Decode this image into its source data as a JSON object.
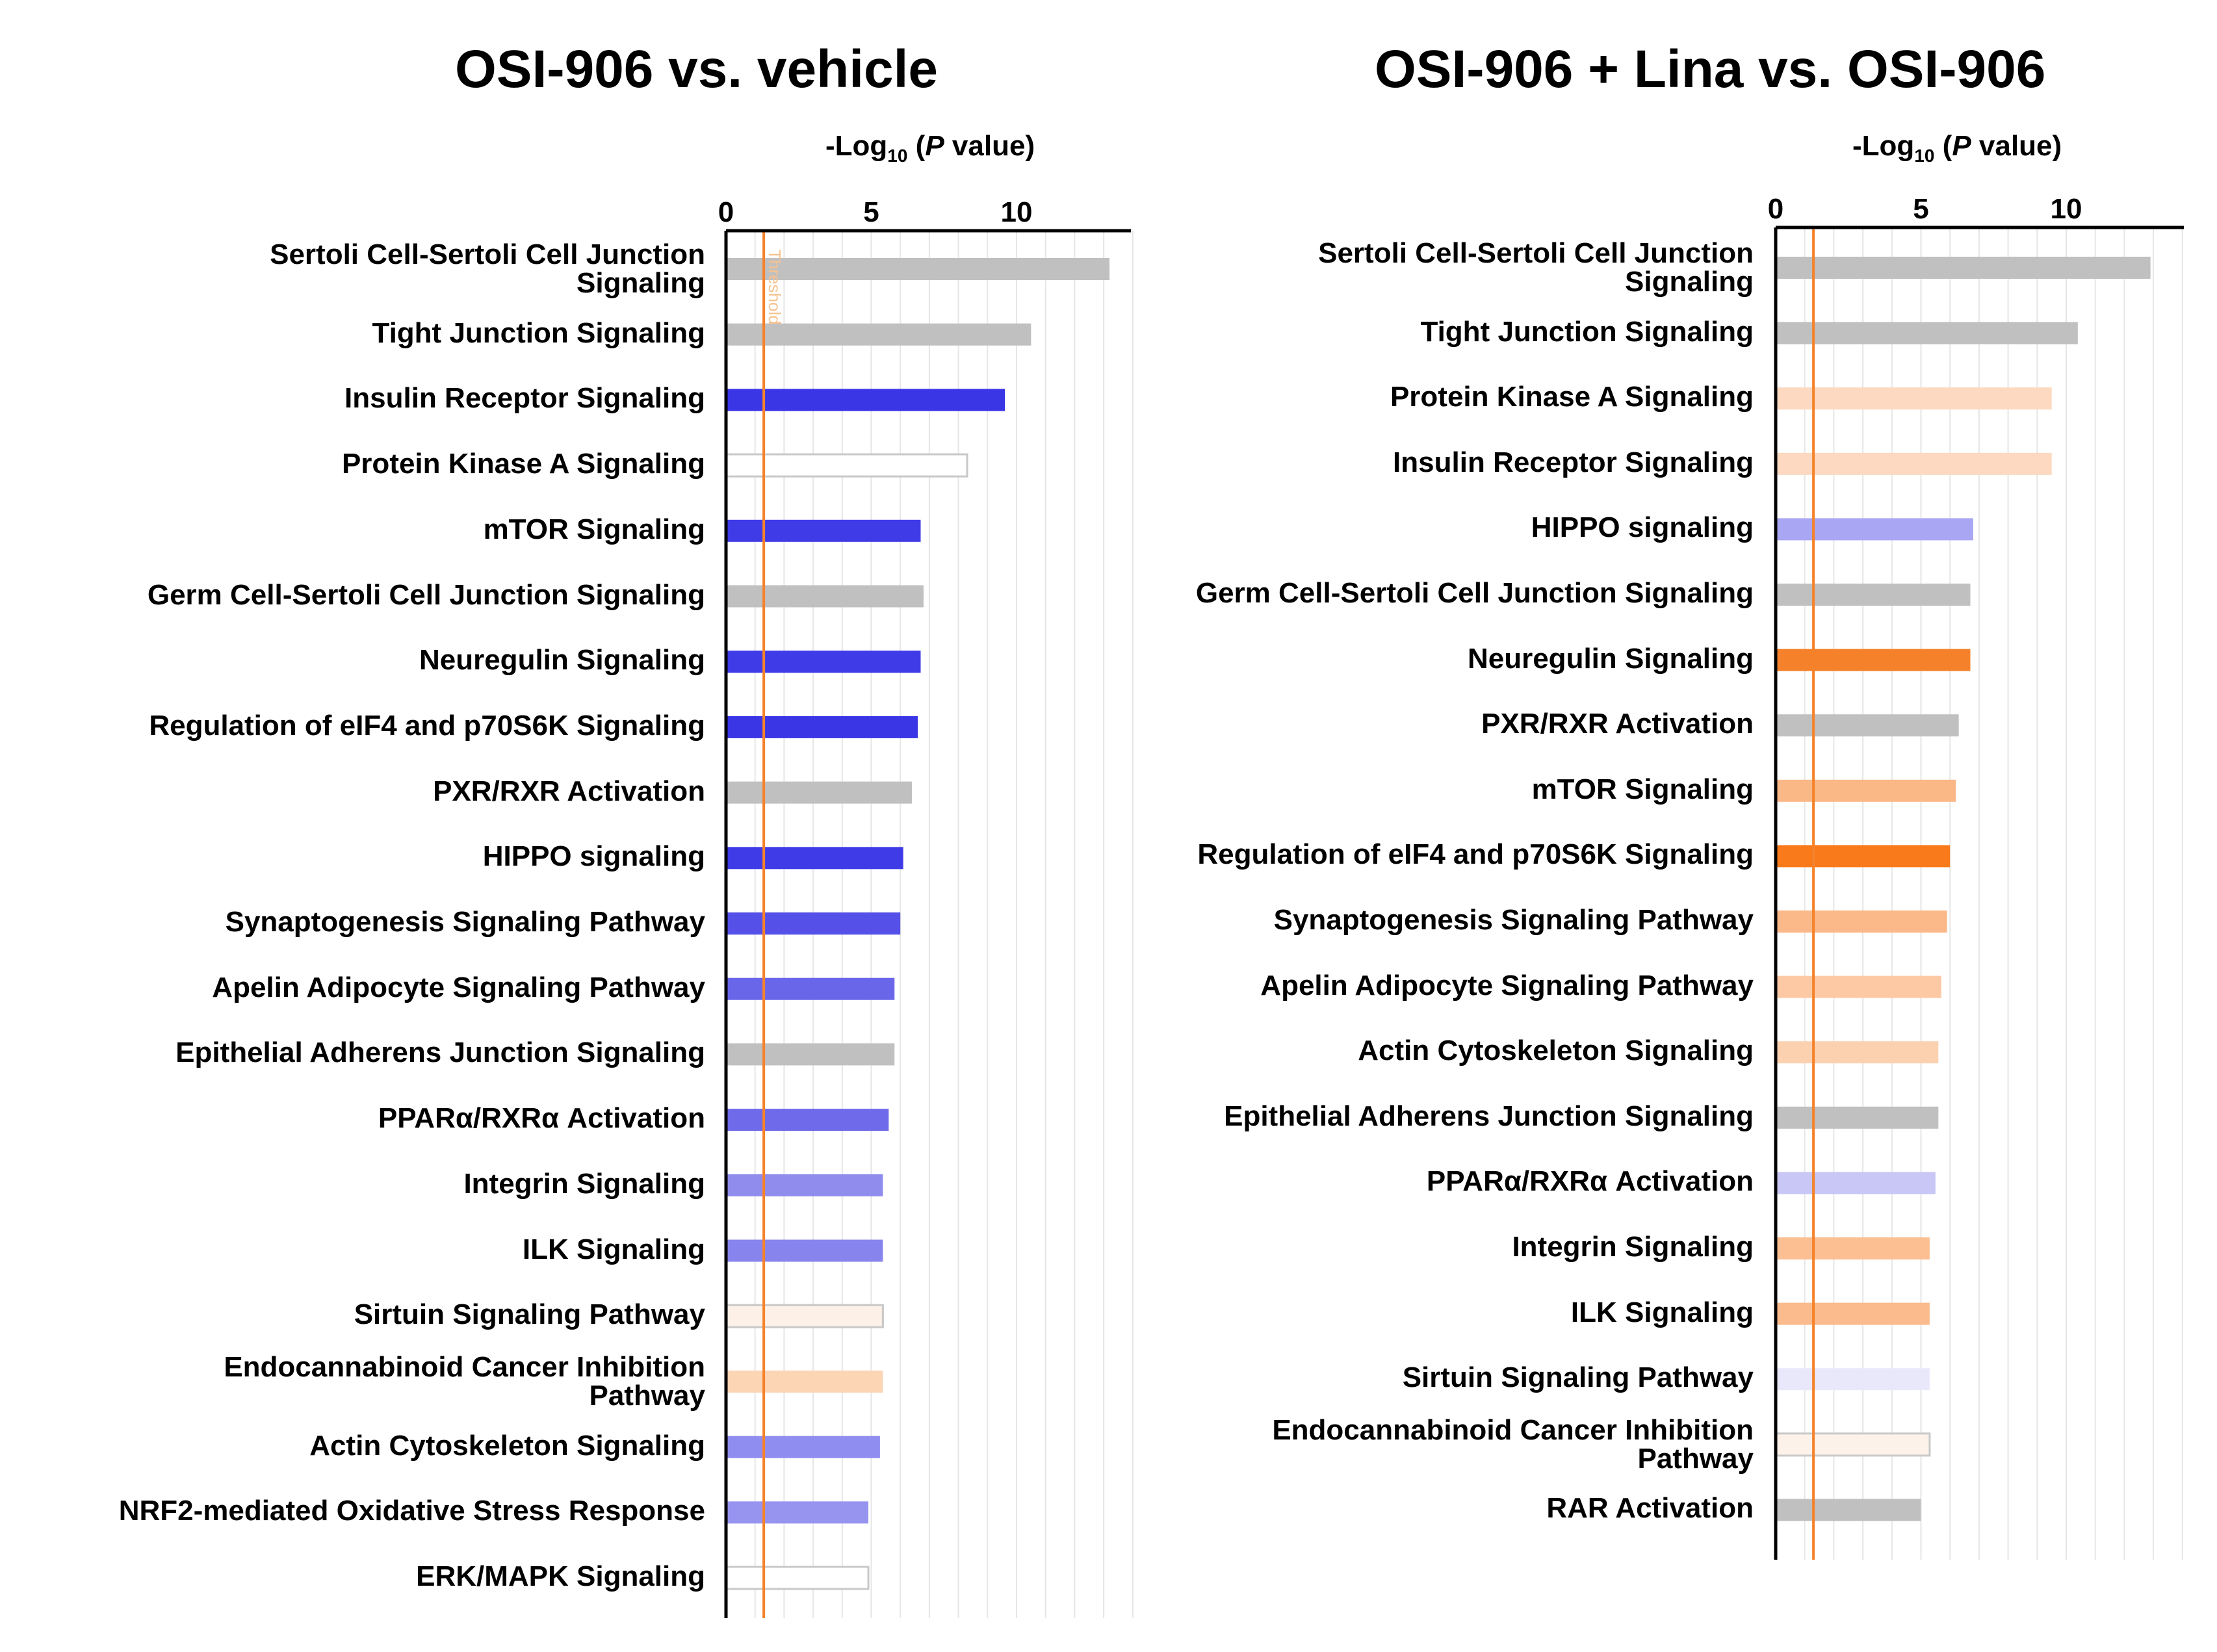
{
  "charts": [
    {
      "title": "OSI-906 vs. vehicle",
      "axis_title": {
        "prefix": "-Log",
        "sub": "10",
        "open": " (",
        "italic": "P",
        "rest": " value)"
      },
      "threshold_label": "Threshold"
    },
    {
      "title": "OSI-906 + Lina vs. OSI-906",
      "axis_title": {
        "prefix": "-Log",
        "sub": "10",
        "open": " (",
        "italic": "P",
        "rest": " value)"
      },
      "threshold_label": ""
    }
  ],
  "chart_data": [
    {
      "type": "bar",
      "orientation": "horizontal",
      "title": "OSI-906 vs. vehicle",
      "xlabel": "-Log10 (P value)",
      "xlim": [
        0,
        14
      ],
      "xticks": [
        0,
        5,
        10
      ],
      "threshold": 1.3,
      "grid": true,
      "categories": [
        "Sertoli Cell-Sertoli Cell Junction Signaling",
        "Tight Junction Signaling",
        "Insulin Receptor Signaling",
        "Protein Kinase A Signaling",
        "mTOR Signaling",
        "Germ Cell-Sertoli Cell Junction Signaling",
        "Neuregulin Signaling",
        "Regulation of eIF4 and p70S6K Signaling",
        "PXR/RXR Activation",
        "HIPPO signaling",
        "Synaptogenesis Signaling Pathway",
        "Apelin Adipocyte Signaling Pathway",
        "Epithelial Adherens Junction Signaling",
        "PPARα/RXRα Activation",
        "Integrin Signaling",
        "ILK Signaling",
        "Sirtuin Signaling Pathway",
        "Endocannabinoid Cancer Inhibition Pathway",
        "Actin Cytoskeleton Signaling",
        "NRF2-mediated Oxidative Stress Response",
        "ERK/MAPK Signaling"
      ],
      "values": [
        13.2,
        10.5,
        9.6,
        8.3,
        6.7,
        6.8,
        6.7,
        6.6,
        6.4,
        6.1,
        6.0,
        5.8,
        5.8,
        5.6,
        5.4,
        5.4,
        5.4,
        5.4,
        5.3,
        4.9,
        4.9
      ],
      "colors": [
        "#c0c0c0",
        "#c0c0c0",
        "#3a36e6",
        "#ffffff",
        "#3f3be6",
        "#c0c0c0",
        "#3f3be6",
        "#3a36e6",
        "#c0c0c0",
        "#3f3be6",
        "#5550e8",
        "#6a66ea",
        "#c0c0c0",
        "#6e6aea",
        "#8f8cee",
        "#8784ed",
        "#fdf0e6",
        "#fcd5b5",
        "#908df0",
        "#9794ef",
        "#ffffff"
      ]
    },
    {
      "type": "bar",
      "orientation": "horizontal",
      "title": "OSI-906 + Lina vs. OSI-906",
      "xlabel": "-Log10 (P value)",
      "xlim": [
        0,
        14
      ],
      "xticks": [
        0,
        5,
        10
      ],
      "threshold": 1.3,
      "grid": true,
      "categories": [
        "Sertoli Cell-Sertoli Cell Junction Signaling",
        "Tight Junction Signaling",
        "Protein Kinase A Signaling",
        "Insulin Receptor Signaling",
        "HIPPO signaling",
        "Germ Cell-Sertoli Cell Junction Signaling",
        "Neuregulin Signaling",
        "PXR/RXR Activation",
        "mTOR Signaling",
        "Regulation of eIF4 and p70S6K Signaling",
        "Synaptogenesis Signaling Pathway",
        "Apelin Adipocyte Signaling Pathway",
        "Actin Cytoskeleton Signaling",
        "Epithelial Adherens Junction Signaling",
        "PPARα/RXRα Activation",
        "Integrin Signaling",
        "ILK Signaling",
        "Sirtuin Signaling Pathway",
        "Endocannabinoid Cancer Inhibition Pathway",
        "RAR Activation"
      ],
      "values": [
        12.9,
        10.4,
        9.5,
        9.5,
        6.8,
        6.7,
        6.7,
        6.3,
        6.2,
        6.0,
        5.9,
        5.7,
        5.6,
        5.6,
        5.5,
        5.3,
        5.3,
        5.3,
        5.3,
        5.0
      ],
      "colors": [
        "#c0c0c0",
        "#c0c0c0",
        "#fcd9c0",
        "#fcd9c0",
        "#a9a6f3",
        "#c0c0c0",
        "#f5822a",
        "#c0c0c0",
        "#fbb887",
        "#f97a1a",
        "#fbb98a",
        "#fcc9a4",
        "#fcd1b0",
        "#c0c0c0",
        "#c9c7f6",
        "#fbbf92",
        "#fbbb8c",
        "#e9e8fb",
        "#fdf2ea",
        "#c0c0c0"
      ]
    }
  ]
}
